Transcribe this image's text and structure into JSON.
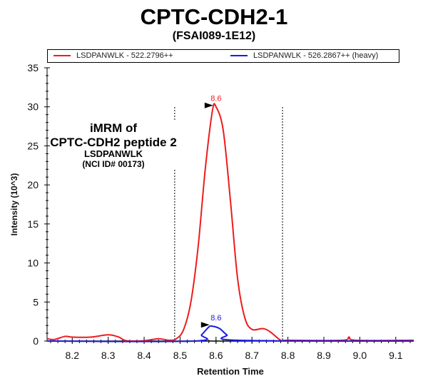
{
  "chart_data": {
    "type": "line",
    "title": "CPTC-CDH2-1",
    "subtitle": "(FSAI089-1E12)",
    "xlabel": "Retention Time",
    "ylabel": "Intensity (10^3)",
    "xlim": [
      8.13,
      9.15
    ],
    "ylim": [
      0,
      35
    ],
    "xticks": [
      "8.2",
      "8.3",
      "8.4",
      "8.5",
      "8.6",
      "8.7",
      "8.8",
      "8.9",
      "9.0",
      "9.1"
    ],
    "yticks": [
      "0",
      "5",
      "10",
      "15",
      "20",
      "25",
      "30",
      "35"
    ],
    "grid": false,
    "legend_position": "top",
    "boundaries": [
      8.485,
      8.785
    ],
    "series": [
      {
        "name": "LSDPANWLK - 522.2796++",
        "color": "#ee1c1c",
        "peak_label": "8.6",
        "peak": [
          8.6,
          30
        ],
        "x": [
          8.13,
          8.15,
          8.18,
          8.2,
          8.25,
          8.3,
          8.33,
          8.35,
          8.4,
          8.44,
          8.47,
          8.49,
          8.51,
          8.53,
          8.55,
          8.57,
          8.59,
          8.6,
          8.62,
          8.64,
          8.66,
          8.68,
          8.7,
          8.73,
          8.75,
          8.78,
          8.8,
          8.95,
          8.97,
          8.99,
          9.15
        ],
        "y": [
          0.3,
          0.2,
          0.6,
          0.5,
          0.5,
          0.8,
          0.5,
          0.05,
          0.05,
          0.3,
          0.1,
          0.3,
          1.5,
          5,
          12,
          22,
          29.5,
          30,
          27,
          18,
          8,
          3,
          1.5,
          1.6,
          1.2,
          0.1,
          0.1,
          0.1,
          0.5,
          0.1,
          0.1
        ]
      },
      {
        "name": "LSDPANWLK - 526.2867++ (heavy)",
        "color": "#1c1ce0",
        "peak_label": "8.6",
        "peak": [
          8.59,
          1.9
        ],
        "x": [
          8.13,
          8.54,
          8.56,
          8.58,
          8.59,
          8.61,
          8.63,
          8.66,
          9.15
        ],
        "y": [
          0,
          0,
          0.8,
          1.8,
          1.9,
          1.6,
          0.8,
          0.1,
          0
        ]
      }
    ],
    "annotation": [
      "iMRM of",
      "CPTC-CDH2 peptide 2",
      "LSDPANWLK",
      "(NCI ID# 00173)"
    ]
  }
}
